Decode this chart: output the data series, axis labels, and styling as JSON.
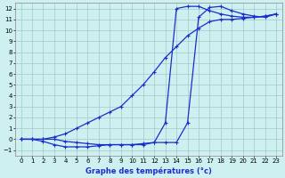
{
  "xlabel": "Graphe des températures (°c)",
  "bg_color": "#cff0f0",
  "grid_color": "#a0c8c8",
  "line_color": "#1a2ecc",
  "xlim": [
    -0.5,
    23.5
  ],
  "ylim": [
    -1.5,
    12.5
  ],
  "xticks": [
    0,
    1,
    2,
    3,
    4,
    5,
    6,
    7,
    8,
    9,
    10,
    11,
    12,
    13,
    14,
    15,
    16,
    17,
    18,
    19,
    20,
    21,
    22,
    23
  ],
  "yticks": [
    -1,
    0,
    1,
    2,
    3,
    4,
    5,
    6,
    7,
    8,
    9,
    10,
    11,
    12
  ],
  "line1_x": [
    0,
    1,
    2,
    3,
    4,
    5,
    6,
    7,
    8,
    9,
    10,
    11,
    12,
    13,
    14,
    15,
    16,
    17,
    18,
    19,
    20,
    21,
    22,
    23
  ],
  "line1_y": [
    0,
    0,
    0,
    0,
    -0.2,
    -0.3,
    -0.4,
    -0.5,
    -0.5,
    -0.5,
    -0.5,
    -0.5,
    -0.3,
    1.5,
    12.0,
    12.2,
    12.2,
    11.8,
    11.5,
    11.3,
    11.2,
    11.2,
    11.3,
    11.5
  ],
  "line2_x": [
    0,
    1,
    2,
    3,
    4,
    5,
    6,
    7,
    8,
    9,
    10,
    11,
    12,
    13,
    14,
    15,
    16,
    17,
    18,
    19,
    20,
    21,
    22,
    23
  ],
  "line2_y": [
    0,
    0,
    0,
    0.2,
    0.5,
    1.0,
    1.5,
    2.0,
    2.5,
    3.0,
    4.0,
    5.0,
    6.2,
    7.5,
    8.5,
    9.5,
    10.2,
    10.8,
    11.0,
    11.0,
    11.1,
    11.2,
    11.3,
    11.5
  ],
  "line3_x": [
    0,
    1,
    2,
    3,
    4,
    5,
    6,
    7,
    8,
    9,
    10,
    11,
    12,
    13,
    14,
    15,
    16,
    17,
    18,
    19,
    20,
    21,
    22,
    23
  ],
  "line3_y": [
    0,
    0,
    -0.2,
    -0.5,
    -0.7,
    -0.7,
    -0.7,
    -0.6,
    -0.5,
    -0.5,
    -0.5,
    -0.4,
    -0.3,
    -0.3,
    -0.3,
    1.5,
    11.2,
    12.1,
    12.2,
    11.8,
    11.5,
    11.3,
    11.2,
    11.5
  ]
}
